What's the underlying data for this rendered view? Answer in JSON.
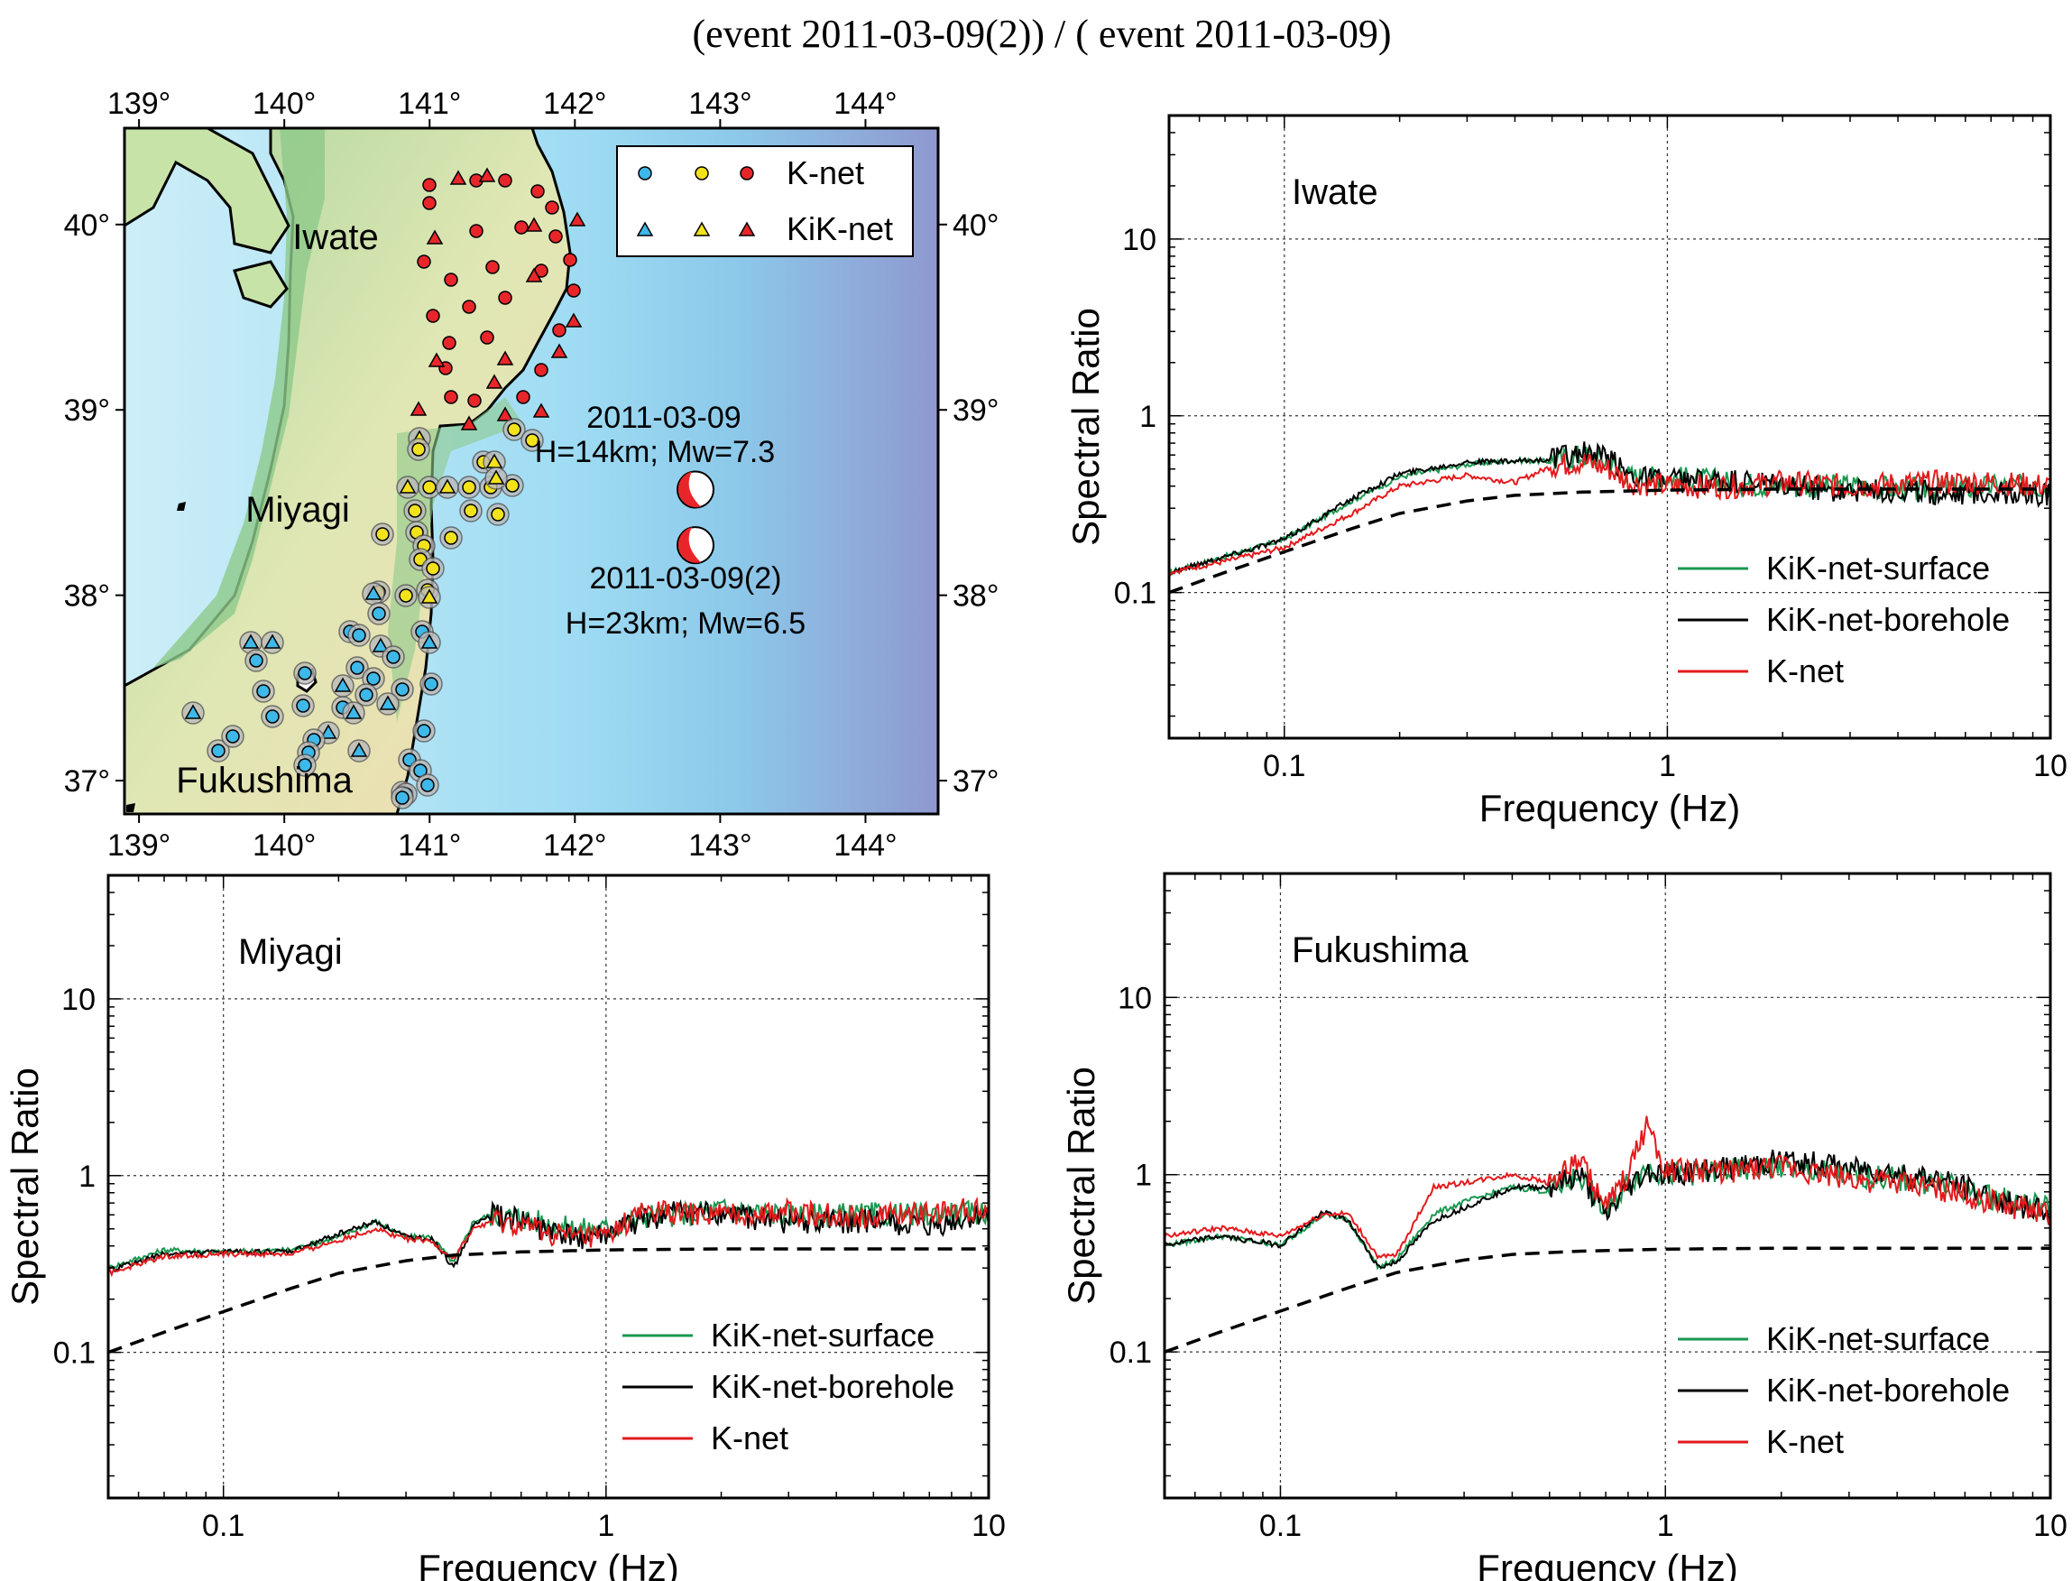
{
  "figure": {
    "title": "(event 2011-03-09(2)) / ( event 2011-03-09)"
  },
  "map": {
    "lon_ticks": [
      "139°",
      "140°",
      "141°",
      "142°",
      "143°",
      "144°"
    ],
    "lat_ticks_left": [
      "40°",
      "39°",
      "38°",
      "37°"
    ],
    "lat_ticks_right": [
      "40°",
      "39°",
      "38°",
      "37°"
    ],
    "lon_range": [
      138.9,
      144.5
    ],
    "lat_range": [
      36.82,
      40.52
    ],
    "regions": [
      "Iwate",
      "Miyagi",
      "Fukushima"
    ],
    "legend": {
      "knet": "K-net",
      "kiknet": "KiK-net"
    },
    "events": [
      {
        "label": "2011-03-09",
        "detail": "H=14km; Mw=7.3",
        "lon": 142.83,
        "lat": 38.57
      },
      {
        "label": "2011-03-09(2)",
        "detail": "H=23km; Mw=6.5",
        "lon": 142.83,
        "lat": 38.27
      }
    ],
    "station_colors": {
      "Iwate": "#e8262a",
      "Miyagi": "#f2e21c",
      "Fukushima": "#3db8e8"
    }
  },
  "chart_data": [
    {
      "type": "line",
      "panel": "Iwate",
      "xlabel": "Frequency (Hz)",
      "ylabel": "Spectral Ratio",
      "xscale": "log",
      "yscale": "log",
      "xlim": [
        0.05,
        10
      ],
      "ylim": [
        0.015,
        50
      ],
      "xticks": [
        "0.1",
        "1",
        "10"
      ],
      "yticks": [
        "0.1",
        "1",
        "10"
      ],
      "grid": true,
      "legend_position": "bottom-right",
      "series": [
        {
          "name": "KiK-net-surface",
          "color": "#1a9850",
          "x": [
            0.05,
            0.07,
            0.1,
            0.15,
            0.2,
            0.3,
            0.4,
            0.5,
            0.6,
            0.7,
            0.8,
            1,
            1.5,
            2,
            3,
            5,
            7,
            10
          ],
          "y": [
            0.13,
            0.16,
            0.2,
            0.33,
            0.45,
            0.53,
            0.56,
            0.55,
            0.6,
            0.55,
            0.45,
            0.45,
            0.42,
            0.4,
            0.4,
            0.38,
            0.4,
            0.4
          ]
        },
        {
          "name": "KiK-net-borehole",
          "color": "#000000",
          "x": [
            0.05,
            0.07,
            0.1,
            0.15,
            0.2,
            0.3,
            0.4,
            0.5,
            0.6,
            0.7,
            0.8,
            1,
            1.5,
            2,
            3,
            5,
            7,
            10
          ],
          "y": [
            0.13,
            0.16,
            0.2,
            0.34,
            0.47,
            0.55,
            0.55,
            0.57,
            0.62,
            0.57,
            0.47,
            0.43,
            0.42,
            0.4,
            0.38,
            0.37,
            0.37,
            0.36
          ]
        },
        {
          "name": "K-net",
          "color": "#e31a1c",
          "x": [
            0.05,
            0.07,
            0.1,
            0.15,
            0.2,
            0.3,
            0.4,
            0.5,
            0.6,
            0.7,
            0.8,
            1,
            1.5,
            2,
            3,
            5,
            7,
            10
          ],
          "y": [
            0.13,
            0.15,
            0.18,
            0.28,
            0.4,
            0.46,
            0.42,
            0.52,
            0.55,
            0.5,
            0.42,
            0.4,
            0.4,
            0.42,
            0.4,
            0.42,
            0.42,
            0.4
          ]
        },
        {
          "name": "",
          "style": "dashed",
          "color": "#000000",
          "x": [
            0.05,
            0.07,
            0.1,
            0.15,
            0.2,
            0.3,
            0.4,
            0.6,
            1,
            2,
            5,
            10
          ],
          "y": [
            0.1,
            0.13,
            0.17,
            0.23,
            0.28,
            0.33,
            0.355,
            0.37,
            0.38,
            0.385,
            0.385,
            0.385
          ]
        }
      ]
    },
    {
      "type": "line",
      "panel": "Miyagi",
      "xlabel": "Frequency (Hz)",
      "ylabel": "Spectral Ratio",
      "xscale": "log",
      "yscale": "log",
      "xlim": [
        0.05,
        10
      ],
      "ylim": [
        0.015,
        50
      ],
      "xticks": [
        "0.1",
        "1",
        "10"
      ],
      "yticks": [
        "0.1",
        "1",
        "10"
      ],
      "grid": true,
      "legend_position": "bottom-right",
      "series": [
        {
          "name": "KiK-net-surface",
          "color": "#1a9850",
          "x": [
            0.05,
            0.07,
            0.1,
            0.15,
            0.2,
            0.25,
            0.3,
            0.35,
            0.4,
            0.45,
            0.5,
            0.6,
            0.8,
            1,
            1.3,
            1.6,
            2,
            3,
            5,
            7,
            10
          ],
          "y": [
            0.3,
            0.38,
            0.37,
            0.38,
            0.45,
            0.55,
            0.45,
            0.45,
            0.32,
            0.55,
            0.6,
            0.58,
            0.5,
            0.5,
            0.6,
            0.6,
            0.65,
            0.6,
            0.6,
            0.6,
            0.62
          ]
        },
        {
          "name": "KiK-net-borehole",
          "color": "#000000",
          "x": [
            0.05,
            0.07,
            0.1,
            0.15,
            0.2,
            0.25,
            0.3,
            0.35,
            0.4,
            0.45,
            0.5,
            0.6,
            0.8,
            1,
            1.3,
            1.6,
            2,
            3,
            5,
            7,
            10
          ],
          "y": [
            0.29,
            0.36,
            0.37,
            0.37,
            0.47,
            0.55,
            0.45,
            0.44,
            0.3,
            0.52,
            0.6,
            0.55,
            0.45,
            0.45,
            0.58,
            0.62,
            0.6,
            0.55,
            0.55,
            0.5,
            0.6
          ]
        },
        {
          "name": "K-net",
          "color": "#e31a1c",
          "x": [
            0.05,
            0.07,
            0.1,
            0.15,
            0.2,
            0.25,
            0.3,
            0.35,
            0.4,
            0.45,
            0.5,
            0.6,
            0.8,
            1,
            1.3,
            1.6,
            2,
            3,
            5,
            7,
            10
          ],
          "y": [
            0.28,
            0.35,
            0.36,
            0.36,
            0.43,
            0.5,
            0.44,
            0.42,
            0.34,
            0.5,
            0.55,
            0.52,
            0.45,
            0.45,
            0.65,
            0.6,
            0.6,
            0.62,
            0.58,
            0.62,
            0.65
          ]
        },
        {
          "name": "",
          "style": "dashed",
          "color": "#000000",
          "x": [
            0.05,
            0.07,
            0.1,
            0.15,
            0.2,
            0.3,
            0.4,
            0.6,
            1,
            2,
            5,
            10
          ],
          "y": [
            0.1,
            0.13,
            0.17,
            0.23,
            0.28,
            0.33,
            0.355,
            0.37,
            0.38,
            0.385,
            0.385,
            0.385
          ]
        }
      ]
    },
    {
      "type": "line",
      "panel": "Fukushima",
      "xlabel": "Frequency (Hz)",
      "ylabel": "Spectral Ratio",
      "xscale": "log",
      "yscale": "log",
      "xlim": [
        0.05,
        10
      ],
      "ylim": [
        0.015,
        50
      ],
      "xticks": [
        "0.1",
        "1",
        "10"
      ],
      "yticks": [
        "0.1",
        "1",
        "10"
      ],
      "grid": true,
      "legend_position": "bottom-right",
      "series": [
        {
          "name": "KiK-net-surface",
          "color": "#1a9850",
          "x": [
            0.05,
            0.07,
            0.1,
            0.13,
            0.15,
            0.18,
            0.2,
            0.25,
            0.3,
            0.4,
            0.5,
            0.6,
            0.7,
            0.8,
            0.9,
            1,
            1.5,
            2,
            3,
            5,
            7,
            10
          ],
          "y": [
            0.4,
            0.45,
            0.4,
            0.6,
            0.55,
            0.3,
            0.33,
            0.6,
            0.7,
            0.85,
            0.8,
            1.0,
            0.6,
            0.9,
            1.1,
            1.0,
            1.05,
            1.1,
            1.0,
            0.9,
            0.75,
            0.65
          ]
        },
        {
          "name": "KiK-net-borehole",
          "color": "#000000",
          "x": [
            0.05,
            0.07,
            0.1,
            0.13,
            0.15,
            0.18,
            0.2,
            0.25,
            0.3,
            0.4,
            0.5,
            0.6,
            0.7,
            0.8,
            0.9,
            1,
            1.5,
            2,
            3,
            5,
            7,
            10
          ],
          "y": [
            0.4,
            0.45,
            0.4,
            0.62,
            0.55,
            0.3,
            0.32,
            0.55,
            0.65,
            0.85,
            0.85,
            1.0,
            0.58,
            0.85,
            1.05,
            1.0,
            1.1,
            1.2,
            1.1,
            0.95,
            0.75,
            0.6
          ]
        },
        {
          "name": "K-net",
          "color": "#e31a1c",
          "x": [
            0.05,
            0.07,
            0.1,
            0.13,
            0.15,
            0.18,
            0.2,
            0.25,
            0.3,
            0.4,
            0.5,
            0.6,
            0.7,
            0.8,
            0.9,
            1,
            1.5,
            2,
            3,
            5,
            7,
            10
          ],
          "y": [
            0.45,
            0.5,
            0.45,
            0.6,
            0.6,
            0.34,
            0.35,
            0.85,
            0.9,
            1.0,
            0.9,
            1.2,
            0.65,
            1.0,
            2.0,
            1.05,
            1.05,
            1.1,
            0.95,
            0.85,
            0.7,
            0.6
          ]
        },
        {
          "name": "",
          "style": "dashed",
          "color": "#000000",
          "x": [
            0.05,
            0.07,
            0.1,
            0.15,
            0.2,
            0.3,
            0.4,
            0.6,
            1,
            2,
            5,
            10
          ],
          "y": [
            0.1,
            0.13,
            0.17,
            0.23,
            0.28,
            0.33,
            0.355,
            0.37,
            0.38,
            0.385,
            0.385,
            0.385
          ]
        }
      ]
    }
  ]
}
